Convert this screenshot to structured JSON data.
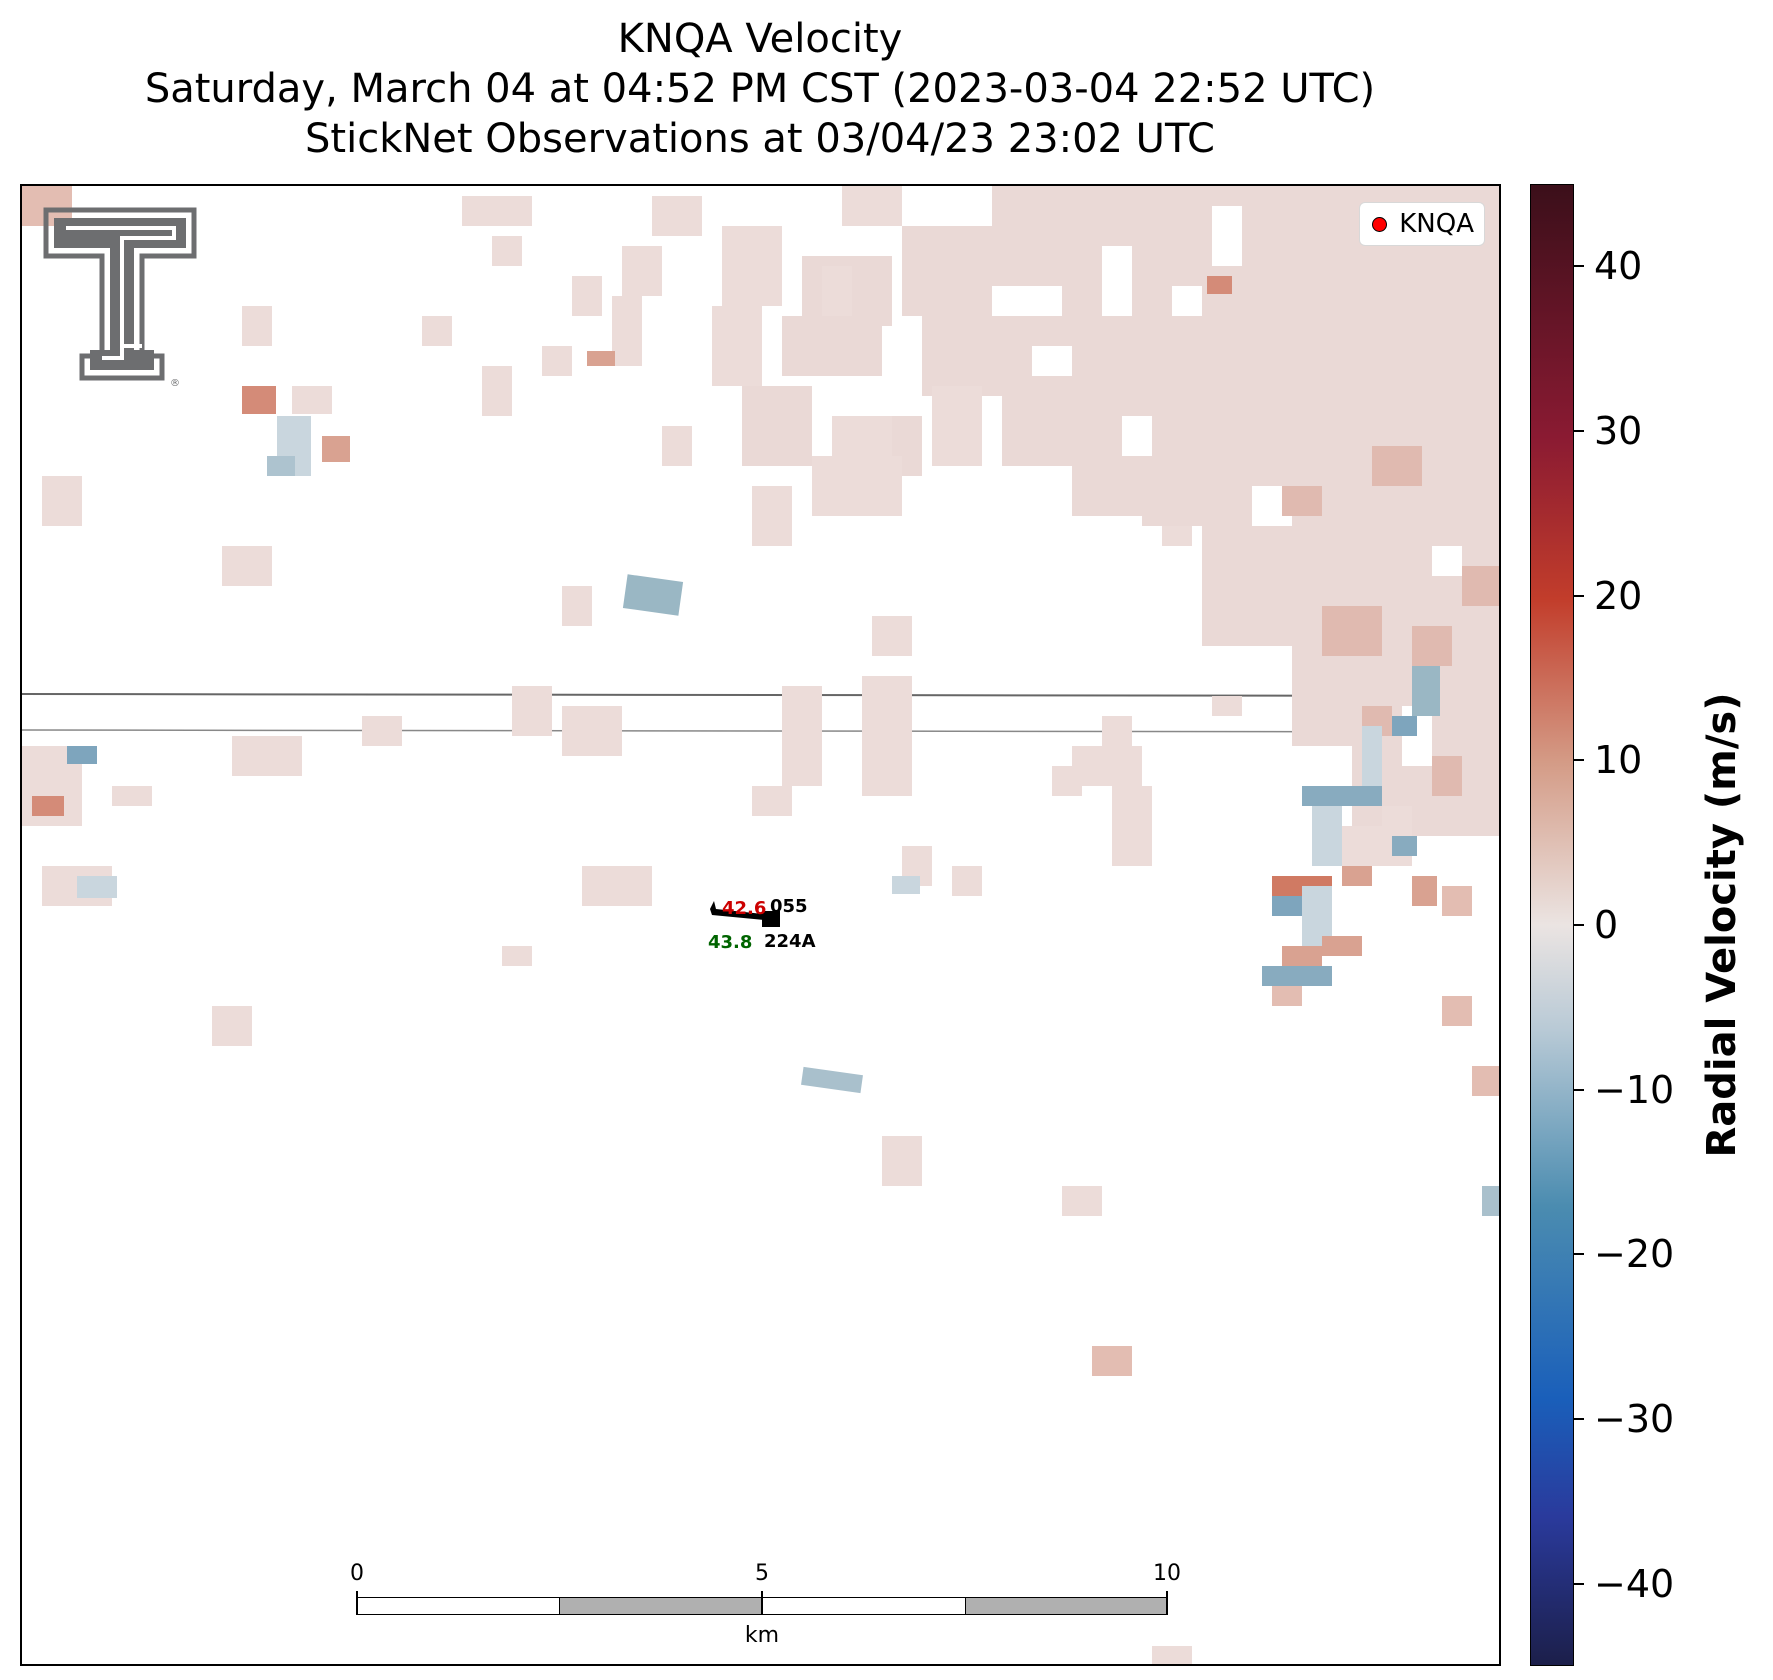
{
  "title": {
    "line1": "KNQA Velocity",
    "line2": "Saturday, March 04 at 04:52 PM CST (2023-03-04 22:52 UTC)",
    "line3": "StickNet Observations at 03/04/23 23:02 UTC"
  },
  "legend": {
    "label": "KNQA",
    "marker_color": "#ff0000"
  },
  "station": {
    "temperature": "42.6",
    "pressure_code": "055",
    "dewpoint": "43.8",
    "station_id": "224A",
    "temperature_color": "#cc0000",
    "dewpoint_color": "#006400"
  },
  "scalebar": {
    "labels": [
      "0",
      "5",
      "10"
    ],
    "unit": "km"
  },
  "colorbar": {
    "label": "Radial Velocity (m/s)",
    "ticks": [
      "40",
      "30",
      "20",
      "10",
      "0",
      "−10",
      "−20",
      "−30",
      "−40"
    ],
    "range": [
      -45,
      45
    ]
  },
  "logo": {
    "icon": "texas-tech-double-t-icon",
    "color": "#6d6e70"
  }
}
